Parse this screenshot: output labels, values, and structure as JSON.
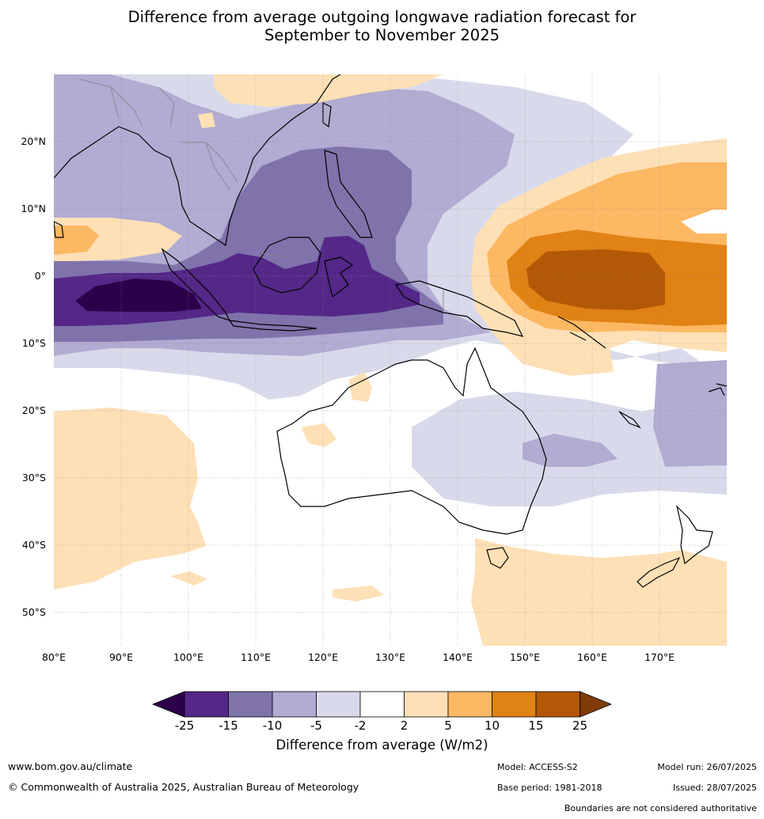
{
  "title_line1": "Difference from average outgoing longwave radiation forecast for",
  "title_line2": "September to November 2025",
  "lat_labels": [
    "20°N",
    "10°N",
    "0°",
    "10°S",
    "20°S",
    "30°S",
    "40°S",
    "50°S"
  ],
  "lon_labels": [
    "80°E",
    "90°E",
    "100°E",
    "110°E",
    "120°E",
    "130°E",
    "140°E",
    "150°E",
    "160°E",
    "170°E"
  ],
  "colorbar": {
    "ticks": [
      "-25",
      "-15",
      "-10",
      "-5",
      "-2",
      "2",
      "5",
      "10",
      "15",
      "25"
    ],
    "colors": [
      "#2d004b",
      "#542788",
      "#8073ac",
      "#b2abd2",
      "#d8daeb",
      "#ffffff",
      "#fee0b6",
      "#fdb863",
      "#e08214",
      "#b35806",
      "#7f3b08"
    ],
    "title": "Difference from average (W/m2)"
  },
  "footer": {
    "website": "www.bom.gov.au/climate",
    "copyright": "© Commonwealth of Australia 2025, Australian Bureau of Meteorology",
    "model": "Model: ACCESS-S2",
    "base_period": "Base period: 1981-2018",
    "model_run": "Model run: 26/07/2025",
    "issued": "Issued: 28/07/2025",
    "disclaimer": "Boundaries are not considered authoritative"
  }
}
